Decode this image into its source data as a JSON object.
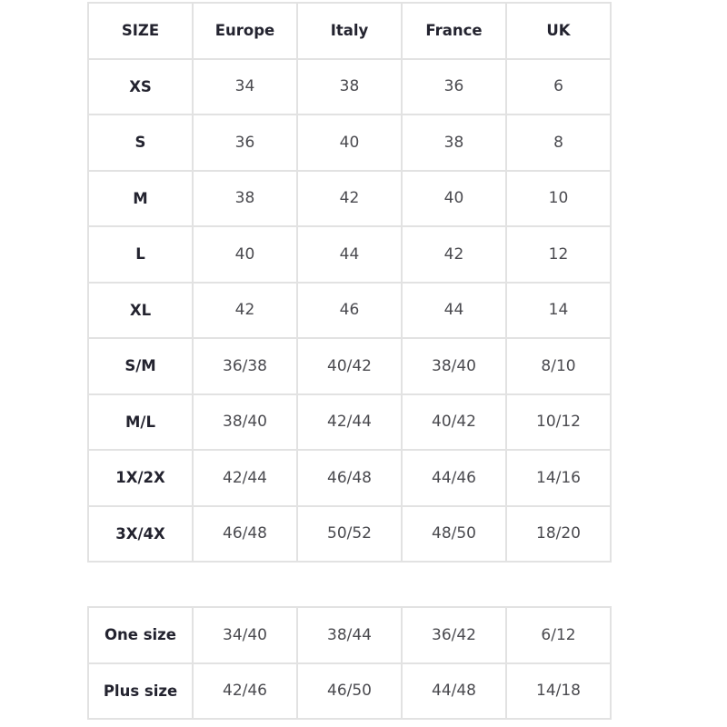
{
  "main_table": {
    "headers": [
      "SIZE",
      "Europe",
      "Italy",
      "France",
      "UK"
    ],
    "rows": [
      [
        "XS",
        "34",
        "38",
        "36",
        "6"
      ],
      [
        "S",
        "36",
        "40",
        "38",
        "8"
      ],
      [
        "M",
        "38",
        "42",
        "40",
        "10"
      ],
      [
        "L",
        "40",
        "44",
        "42",
        "12"
      ],
      [
        "XL",
        "42",
        "46",
        "44",
        "14"
      ],
      [
        "S/M",
        "36/38",
        "40/42",
        "38/40",
        "8/10"
      ],
      [
        "M/L",
        "38/40",
        "42/44",
        "40/42",
        "10/12"
      ],
      [
        "1X/2X",
        "42/44",
        "46/48",
        "44/46",
        "14/16"
      ],
      [
        "3X/4X",
        "46/48",
        "50/52",
        "48/50",
        "18/20"
      ]
    ]
  },
  "secondary_table": {
    "rows": [
      [
        "One size",
        "34/40",
        "38/44",
        "36/42",
        "6/12"
      ],
      [
        "Plus size",
        "42/46",
        "46/50",
        "44/48",
        "14/18"
      ]
    ]
  }
}
